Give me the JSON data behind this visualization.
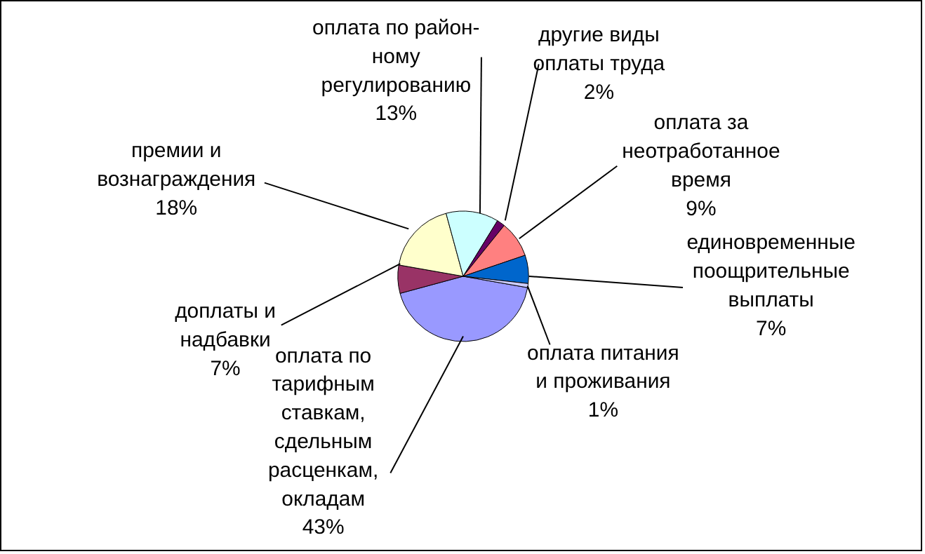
{
  "chart_data": {
    "type": "pie",
    "categories": [
      "оплата по\nтарифным\nставкам,\nсдельным\nрасценкам,\nокладам",
      "доплаты и\nнадбавки",
      "премии и\nвознаграждения",
      "оплата по район-\nному\nрегулированию",
      "другие виды\nоплаты труда",
      "оплата за\nнеотработанное\nвремя",
      "единовременные\nпоощрительные\nвыплаты",
      "оплата питания\nи проживания"
    ],
    "values": [
      43,
      7,
      18,
      13,
      2,
      9,
      7,
      1
    ],
    "colors": [
      "#9999ff",
      "#993366",
      "#ffffcc",
      "#ccffff",
      "#660066",
      "#ff8080",
      "#0066cc",
      "#ccccff"
    ],
    "value_labels": [
      "43%",
      "7%",
      "18%",
      "13%",
      "2%",
      "9%",
      "7%",
      "1%"
    ],
    "legend": false
  }
}
